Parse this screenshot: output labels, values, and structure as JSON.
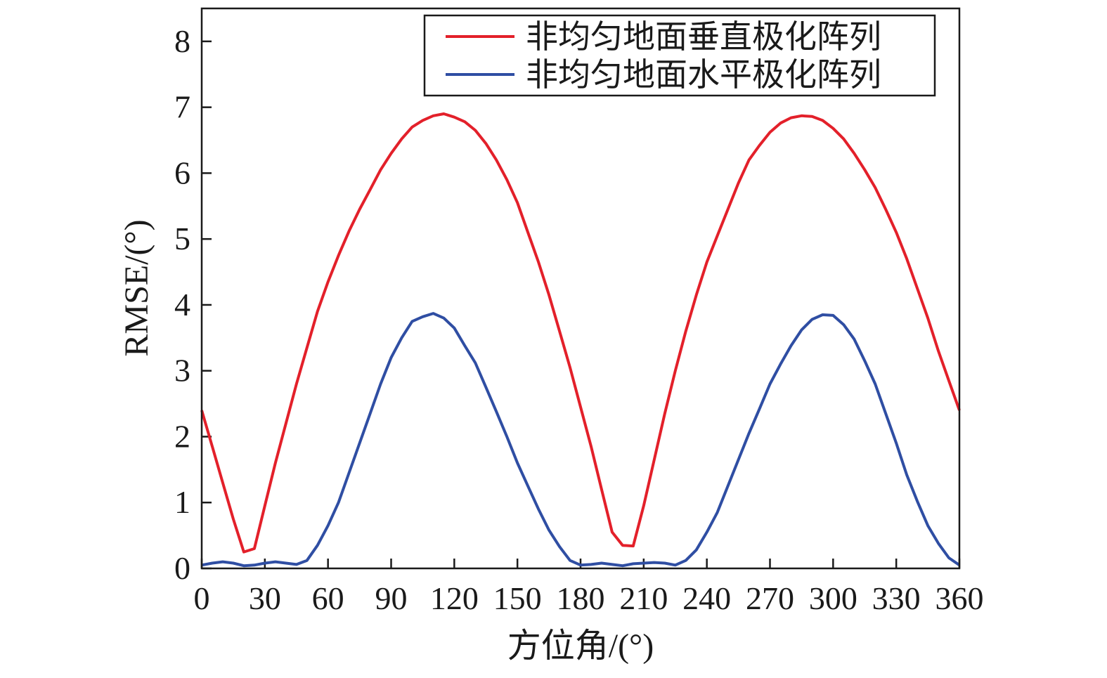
{
  "chart_data": {
    "type": "line",
    "xlabel": "方位角/(°)",
    "ylabel": "RMSE/(°)",
    "xlim": [
      0,
      360
    ],
    "ylim": [
      0,
      8.5
    ],
    "xticks": [
      0,
      30,
      60,
      90,
      120,
      150,
      180,
      210,
      240,
      270,
      300,
      330,
      360
    ],
    "yticks": [
      0,
      1,
      2,
      3,
      4,
      5,
      6,
      7,
      8
    ],
    "grid": false,
    "legend_position": "top-right",
    "x": [
      0,
      5,
      10,
      15,
      20,
      25,
      30,
      35,
      40,
      45,
      50,
      55,
      60,
      65,
      70,
      75,
      80,
      85,
      90,
      95,
      100,
      105,
      110,
      115,
      120,
      125,
      130,
      135,
      140,
      145,
      150,
      155,
      160,
      165,
      170,
      175,
      180,
      185,
      190,
      195,
      200,
      205,
      210,
      215,
      220,
      225,
      230,
      235,
      240,
      245,
      250,
      255,
      260,
      265,
      270,
      275,
      280,
      285,
      290,
      295,
      300,
      305,
      310,
      315,
      320,
      325,
      330,
      335,
      340,
      345,
      350,
      355,
      360
    ],
    "series": [
      {
        "name": "非均匀地面垂直极化阵列",
        "color": "#e3202a",
        "values": [
          2.4,
          1.85,
          1.3,
          0.75,
          0.25,
          0.3,
          0.95,
          1.6,
          2.2,
          2.8,
          3.35,
          3.9,
          4.35,
          4.75,
          5.12,
          5.45,
          5.75,
          6.05,
          6.3,
          6.52,
          6.7,
          6.8,
          6.87,
          6.9,
          6.85,
          6.78,
          6.65,
          6.45,
          6.2,
          5.9,
          5.55,
          5.1,
          4.65,
          4.15,
          3.6,
          3.05,
          2.45,
          1.85,
          1.2,
          0.55,
          0.35,
          0.34,
          0.95,
          1.65,
          2.35,
          3.0,
          3.6,
          4.15,
          4.65,
          5.05,
          5.45,
          5.85,
          6.2,
          6.42,
          6.62,
          6.76,
          6.84,
          6.87,
          6.86,
          6.8,
          6.68,
          6.52,
          6.3,
          6.05,
          5.78,
          5.45,
          5.1,
          4.7,
          4.25,
          3.8,
          3.3,
          2.85,
          2.4
        ]
      },
      {
        "name": "非均匀地面水平极化阵列",
        "color": "#2f4ea3",
        "values": [
          0.05,
          0.08,
          0.1,
          0.08,
          0.04,
          0.05,
          0.08,
          0.1,
          0.08,
          0.06,
          0.12,
          0.35,
          0.65,
          1.0,
          1.45,
          1.9,
          2.35,
          2.8,
          3.2,
          3.5,
          3.75,
          3.82,
          3.87,
          3.8,
          3.65,
          3.38,
          3.12,
          2.75,
          2.38,
          2.0,
          1.6,
          1.25,
          0.9,
          0.58,
          0.33,
          0.12,
          0.05,
          0.06,
          0.08,
          0.06,
          0.04,
          0.07,
          0.08,
          0.09,
          0.08,
          0.05,
          0.12,
          0.28,
          0.55,
          0.85,
          1.25,
          1.65,
          2.05,
          2.42,
          2.8,
          3.1,
          3.38,
          3.62,
          3.78,
          3.85,
          3.84,
          3.7,
          3.48,
          3.15,
          2.8,
          2.35,
          1.9,
          1.42,
          1.02,
          0.65,
          0.38,
          0.16,
          0.05
        ]
      }
    ]
  }
}
